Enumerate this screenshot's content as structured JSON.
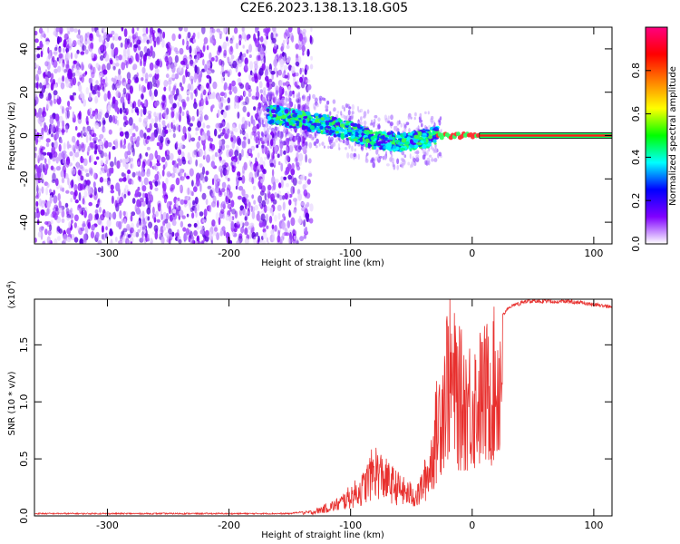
{
  "title": "C2E6.2023.138.13.18.G05",
  "chart_data": [
    {
      "type": "heatmap",
      "xlabel": "Height of straight line (km)",
      "ylabel": "Frequency (Hz)",
      "xlim": [
        -360,
        115
      ],
      "ylim": [
        -50,
        50
      ],
      "xticks": [
        -300,
        -200,
        -100,
        0,
        100
      ],
      "yticks": [
        40,
        20,
        0,
        -20,
        -40
      ],
      "colorbar": {
        "label": "Normalized spectral amplitude",
        "ticks": [
          "0.0",
          "0.2",
          "0.4",
          "0.6",
          "0.8"
        ],
        "range": [
          0,
          1
        ],
        "colors": [
          "#ffffff",
          "#8000ff",
          "#0000ff",
          "#00ffff",
          "#00ff00",
          "#ffff00",
          "#ff8000",
          "#ff0000",
          "#ff0080"
        ]
      },
      "signal_trace": [
        {
          "x": -165,
          "y": 10
        },
        {
          "x": -140,
          "y": 7
        },
        {
          "x": -120,
          "y": 5
        },
        {
          "x": -100,
          "y": 2
        },
        {
          "x": -80,
          "y": -2
        },
        {
          "x": -60,
          "y": -3
        },
        {
          "x": -45,
          "y": -2
        },
        {
          "x": -30,
          "y": 0
        },
        {
          "x": 0,
          "y": 0
        },
        {
          "x": 115,
          "y": 0
        }
      ]
    },
    {
      "type": "line",
      "xlabel": "Height of straight line (km)",
      "ylabel": "SNR (10 * v/v)",
      "scale_label": "(x10",
      "scale_exp": "4",
      "scale_close": ")",
      "xlim": [
        -360,
        115
      ],
      "ylim": [
        0,
        1.9
      ],
      "xticks": [
        -300,
        -200,
        -100,
        0,
        100
      ],
      "yticks": [
        "0.0",
        "0.5",
        "1.0",
        "1.5"
      ],
      "series": [
        {
          "color": "#e8302e",
          "envelope": [
            {
              "x": -360,
              "y": 0.02
            },
            {
              "x": -200,
              "y": 0.02
            },
            {
              "x": -150,
              "y": 0.02
            },
            {
              "x": -130,
              "y": 0.05
            },
            {
              "x": -110,
              "y": 0.15
            },
            {
              "x": -90,
              "y": 0.35
            },
            {
              "x": -80,
              "y": 0.6
            },
            {
              "x": -70,
              "y": 0.45
            },
            {
              "x": -55,
              "y": 0.3
            },
            {
              "x": -45,
              "y": 0.25
            },
            {
              "x": -35,
              "y": 0.6
            },
            {
              "x": -28,
              "y": 1.2
            },
            {
              "x": -20,
              "y": 1.8
            },
            {
              "x": -10,
              "y": 1.5
            },
            {
              "x": 0,
              "y": 1.45
            },
            {
              "x": 10,
              "y": 1.55
            },
            {
              "x": 20,
              "y": 1.7
            },
            {
              "x": 30,
              "y": 1.85
            },
            {
              "x": 45,
              "y": 1.9
            },
            {
              "x": 80,
              "y": 1.9
            },
            {
              "x": 115,
              "y": 1.85
            }
          ]
        }
      ]
    }
  ]
}
